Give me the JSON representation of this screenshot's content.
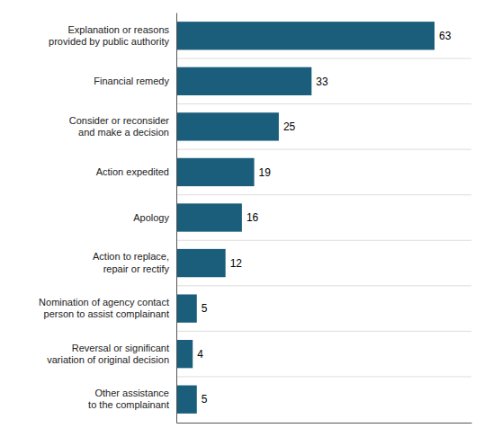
{
  "chart_data": {
    "type": "bar",
    "orientation": "horizontal",
    "categories": [
      "Other assistance\nto the complainant",
      "Reversal or significant\nvariation of original decision",
      "Nomination of agency contact\nperson to assist complainant",
      "Action to replace,\nrepair or rectify",
      "Apology",
      "Action expedited",
      "Consider or reconsider\nand make a decision",
      "Financial remedy",
      "Explanation or reasons\nprovided by public authority"
    ],
    "values": [
      5,
      4,
      5,
      12,
      16,
      19,
      25,
      33,
      63
    ],
    "color": "#1b5e7b",
    "xlim": [
      0,
      72
    ],
    "data_labels": true,
    "tick_labels": "y"
  }
}
